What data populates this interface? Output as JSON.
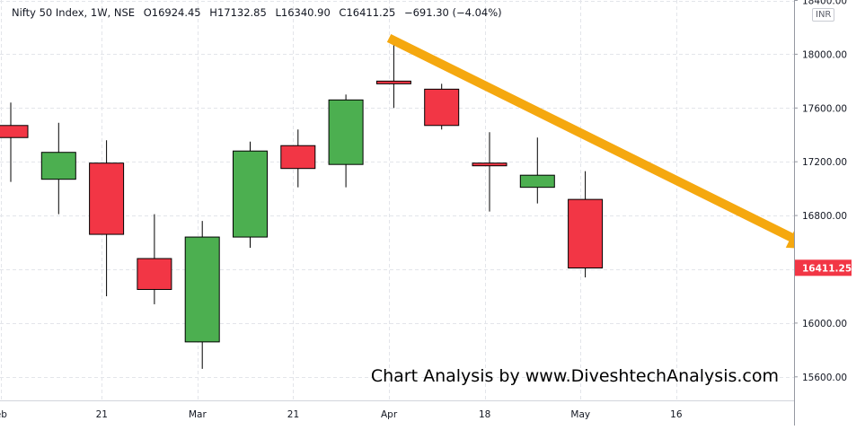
{
  "header": {
    "symbol": "Nifty 50 Index, 1W, NSE",
    "open": "O16924.45",
    "high": "H17132.85",
    "low": "L16340.90",
    "close": "C16411.25",
    "change": "−691.30 (−4.04%)"
  },
  "currency": "INR",
  "watermark": "Chart Analysis by www.DiveshtechAnalysis.com",
  "colors": {
    "up": "#4caf50",
    "down": "#f23645",
    "arrow": "#f5a80f",
    "grid": "#e3e5ea",
    "axis_text": "#131722",
    "price_label_bg": "#f23645"
  },
  "chart_data": {
    "type": "candlestick",
    "title": "Nifty 50 Index, 1W, NSE",
    "ylim": [
      15500,
      18450
    ],
    "y_ticks": [
      15600,
      16000,
      16400,
      16800,
      17200,
      17600,
      18000,
      18400
    ],
    "y_tick_labels": [
      "15600.00",
      "16000.00",
      "16400.00",
      "16800.00",
      "17200.00",
      "17600.00",
      "18000.00",
      "18400.00"
    ],
    "x_ticks": [
      {
        "label": "eb",
        "index": -0.2
      },
      {
        "label": "21",
        "index": 1.9
      },
      {
        "label": "Mar",
        "index": 3.9
      },
      {
        "label": "21",
        "index": 5.9
      },
      {
        "label": "Apr",
        "index": 7.9
      },
      {
        "label": "18",
        "index": 9.9
      },
      {
        "label": "May",
        "index": 11.9
      },
      {
        "label": "16",
        "index": 13.9
      }
    ],
    "candles": [
      {
        "o": 17470,
        "h": 17640,
        "l": 17050,
        "c": 17380
      },
      {
        "o": 17070,
        "h": 17490,
        "l": 16810,
        "c": 17270
      },
      {
        "o": 17190,
        "h": 17360,
        "l": 16200,
        "c": 16660
      },
      {
        "o": 16480,
        "h": 16810,
        "l": 16140,
        "c": 16250
      },
      {
        "o": 15860,
        "h": 16760,
        "l": 15660,
        "c": 16640
      },
      {
        "o": 16640,
        "h": 17350,
        "l": 16560,
        "c": 17280
      },
      {
        "o": 17320,
        "h": 17440,
        "l": 17010,
        "c": 17150
      },
      {
        "o": 17180,
        "h": 17700,
        "l": 17010,
        "c": 17660
      },
      {
        "o": 17800,
        "h": 18100,
        "l": 17600,
        "c": 17780
      },
      {
        "o": 17740,
        "h": 17780,
        "l": 17440,
        "c": 17470
      },
      {
        "o": 17190,
        "h": 17420,
        "l": 16830,
        "c": 17170
      },
      {
        "o": 17010,
        "h": 17380,
        "l": 16890,
        "c": 17100
      },
      {
        "o": 16920,
        "h": 17130,
        "l": 16340,
        "c": 16410
      }
    ],
    "last_price_label": "16411.25",
    "last_price": 16411.25,
    "annotation": {
      "type": "arrow",
      "start": {
        "index": 7.9,
        "y": 18120
      },
      "end": {
        "index": 16.8,
        "y": 16550
      }
    }
  }
}
